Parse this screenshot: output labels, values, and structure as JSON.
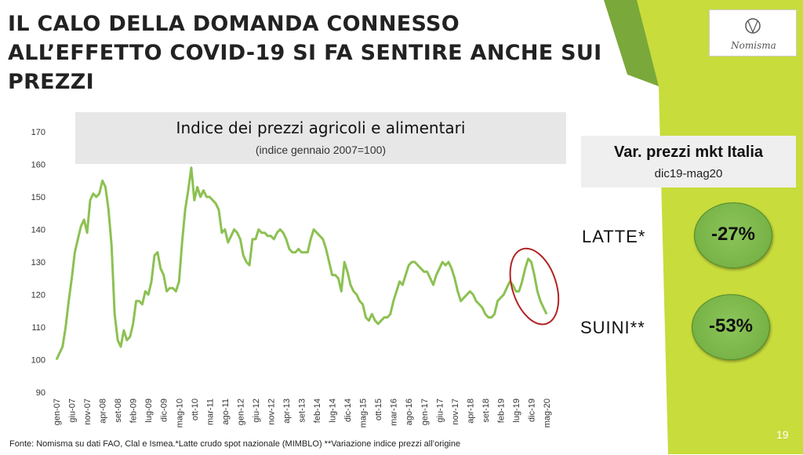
{
  "slide": {
    "title_lines": [
      "IL CALO DELLA DOMANDA CONNESSO",
      "ALL’EFFETTO COVID-19 SI FA SENTIRE ANCHE SUI",
      "PREZZI"
    ],
    "logo_text": "Nomisma",
    "source": "Fonte: Nomisma su dati FAO, Clal e Ismea.*Latte crudo spot nazionale (MIMBLO) **Variazione indice prezzi all’origine",
    "page_number": "19",
    "accent_color": "#c8dc3c",
    "accent_dark": "#7aa83a"
  },
  "side_panel": {
    "title": "Var. prezzi mkt Italia",
    "subtitle": "dic19-mag20",
    "items": [
      {
        "label": "LATTE*",
        "value": "-27%"
      },
      {
        "label": "SUINI**",
        "value": "-53%"
      }
    ],
    "bubble_color": "#78b347"
  },
  "chart_data": {
    "type": "line",
    "title": "Indice dei prezzi agricoli e alimentari",
    "subtitle": "(indice gennaio 2007=100)",
    "ylim": [
      90,
      170
    ],
    "yticks": [
      90,
      100,
      110,
      120,
      130,
      140,
      150,
      160,
      170
    ],
    "x_start": "gen-07",
    "x_end": "mag-20",
    "tick_labels": [
      "gen-07",
      "giu-07",
      "nov-07",
      "apr-08",
      "set-08",
      "feb-09",
      "lug-09",
      "dic-09",
      "mag-10",
      "ott-10",
      "mar-11",
      "ago-11",
      "gen-12",
      "giu-12",
      "nov-12",
      "apr-13",
      "set-13",
      "feb-14",
      "lug-14",
      "dic-14",
      "mag-15",
      "ott-15",
      "mar-16",
      "ago-16",
      "gen-17",
      "giu-17",
      "nov-17",
      "apr-18",
      "set-18",
      "feb-19",
      "lug-19",
      "dic-19",
      "mag-20"
    ],
    "line_color": "#8cc152",
    "highlight": {
      "from": "ott-19",
      "to": "mag-20",
      "color": "#b22222"
    },
    "values": [
      100,
      102,
      104,
      110,
      118,
      125,
      133,
      137,
      141,
      143,
      139,
      149,
      151,
      150,
      151,
      155,
      153,
      146,
      135,
      114,
      106,
      104,
      109,
      106,
      107,
      111,
      118,
      118,
      117,
      121,
      120,
      124,
      132,
      133,
      128,
      126,
      121,
      122,
      122,
      121,
      124,
      136,
      146,
      152,
      159,
      149,
      153,
      150,
      152,
      150,
      150,
      149,
      148,
      146,
      139,
      140,
      136,
      138,
      140,
      139,
      137,
      132,
      130,
      129,
      137,
      137,
      140,
      139,
      139,
      138,
      138,
      137,
      139,
      140,
      139,
      137,
      134,
      133,
      133,
      134,
      133,
      133,
      133,
      137,
      140,
      139,
      138,
      137,
      134,
      130,
      126,
      126,
      125,
      121,
      130,
      127,
      123,
      121,
      120,
      118,
      117,
      113,
      112,
      114,
      112,
      111,
      112,
      113,
      113,
      114,
      118,
      121,
      124,
      123,
      126,
      129,
      130,
      130,
      129,
      128,
      127,
      127,
      125,
      123,
      126,
      128,
      130,
      129,
      130,
      128,
      125,
      121,
      118,
      119,
      120,
      121,
      120,
      118,
      117,
      116,
      114,
      113,
      113,
      114,
      118,
      119,
      120,
      122,
      124,
      123,
      121,
      121,
      124,
      128,
      131,
      130,
      126,
      121,
      118,
      116,
      114
    ]
  }
}
